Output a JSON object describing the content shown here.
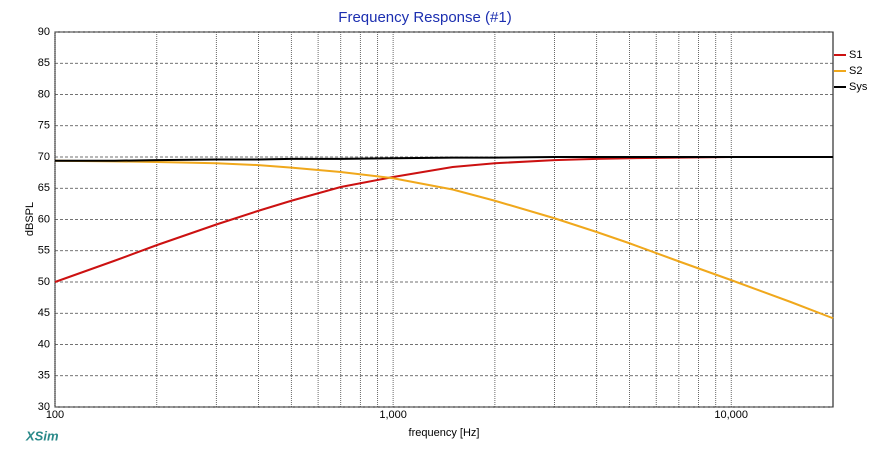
{
  "chart_data": {
    "type": "line",
    "title": "Frequency Response (#1)",
    "x_label": "frequency [Hz]",
    "y_label": "dBSPL",
    "watermark": "XSim",
    "x_scale": "log",
    "grid": true,
    "legend": "upper right",
    "xlim": [
      100,
      20000
    ],
    "xticks": [
      100,
      {
        "value": 1000,
        "label": "1,000"
      },
      {
        "value": 10000,
        "label": "10,000"
      }
    ],
    "minor_xticks": [
      200,
      300,
      400,
      500,
      600,
      700,
      800,
      900,
      2000,
      3000,
      4000,
      5000,
      6000,
      7000,
      8000,
      9000
    ],
    "ylim": [
      30,
      90
    ],
    "yticks": [
      30,
      35,
      40,
      45,
      50,
      55,
      60,
      65,
      70,
      75,
      80,
      85,
      90
    ],
    "x": [
      100,
      150,
      200,
      300,
      400,
      500,
      700,
      1000,
      1500,
      2000,
      3000,
      4000,
      5000,
      7000,
      10000,
      15000,
      20000
    ],
    "series": [
      {
        "name": "S1",
        "color": "#cc1111",
        "values": [
          50,
          53.4,
          55.9,
          59.2,
          61.4,
          63,
          65.2,
          66.8,
          68.4,
          69,
          69.5,
          69.7,
          69.8,
          69.9,
          70,
          70,
          70
        ]
      },
      {
        "name": "S2",
        "color": "#f0a81c",
        "values": [
          69.4,
          69.3,
          69.2,
          69,
          68.7,
          68.3,
          67.6,
          66.6,
          64.8,
          63,
          60.2,
          58,
          56.2,
          53.3,
          50.3,
          46.8,
          44.2
        ]
      },
      {
        "name": "Sys",
        "color": "#000000",
        "values": [
          69.4,
          69.4,
          69.5,
          69.6,
          69.6,
          69.7,
          69.7,
          69.8,
          69.9,
          69.9,
          70,
          70,
          70,
          70,
          70,
          70,
          70
        ]
      }
    ]
  }
}
